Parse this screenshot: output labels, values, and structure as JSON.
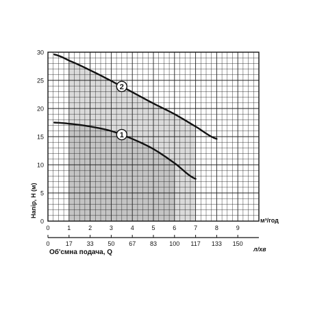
{
  "chart_data": {
    "type": "line",
    "xlabel": "Об'смна подача, Q",
    "ylabel": "Напір, H (м)",
    "x_unit_primary": "м³/год",
    "x_unit_secondary": "л/хв",
    "xlim": [
      0,
      10
    ],
    "ylim": [
      0,
      30
    ],
    "x_ticks": [
      "0",
      "1",
      "2",
      "3",
      "4",
      "5",
      "6",
      "7",
      "8",
      "9"
    ],
    "x_ticks_secondary": [
      "0",
      "17",
      "33",
      "50",
      "67",
      "83",
      "100",
      "117",
      "133",
      "150"
    ],
    "y_ticks": [
      "0",
      "5",
      "10",
      "15",
      "20",
      "25",
      "30"
    ],
    "grid": true,
    "shaded_ranges": [
      {
        "curve": "1",
        "x_from": 1,
        "x_to": 6
      },
      {
        "curve": "2",
        "x_from": 1,
        "x_to": 7
      }
    ],
    "series": [
      {
        "name": "1",
        "x": [
          0.3,
          1,
          2,
          3,
          4,
          5,
          6,
          7
        ],
        "y": [
          17.5,
          17.3,
          16.8,
          16.0,
          14.6,
          12.8,
          10.3,
          7.5
        ]
      },
      {
        "name": "2",
        "x": [
          0.3,
          1,
          2,
          3,
          4,
          5,
          6,
          7,
          8
        ],
        "y": [
          29.6,
          28.5,
          26.8,
          24.9,
          22.9,
          20.9,
          19.0,
          16.8,
          14.6
        ]
      }
    ]
  }
}
